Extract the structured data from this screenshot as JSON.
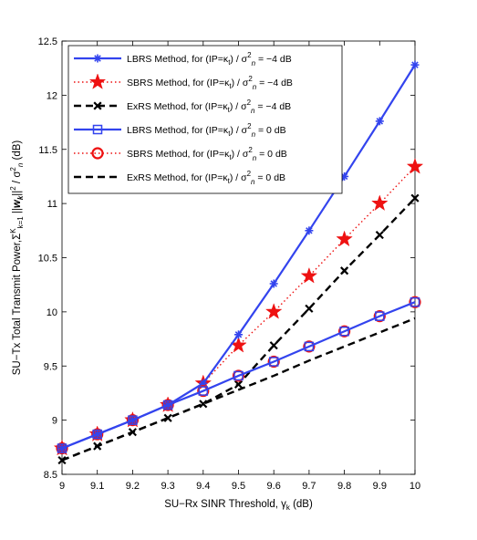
{
  "chart_data": {
    "type": "line",
    "x": [
      9,
      9.1,
      9.2,
      9.3,
      9.4,
      9.5,
      9.6,
      9.7,
      9.8,
      9.9,
      10
    ],
    "xlim": [
      9,
      10
    ],
    "ylim": [
      8.5,
      12.5
    ],
    "xticks": [
      "9",
      "9.1",
      "9.2",
      "9.3",
      "9.4",
      "9.5",
      "9.6",
      "9.7",
      "9.8",
      "9.9",
      "10"
    ],
    "yticks": [
      "8.5",
      "9",
      "9.5",
      "10",
      "10.5",
      "11",
      "11.5",
      "12",
      "12.5"
    ],
    "xlabel": {
      "main": "SU−Rx SINR Threshold, γ",
      "sub": "k",
      "unit": " (dB)"
    },
    "ylabel": {
      "parts": [
        {
          "t": "SU−Tx Total Transmit Power,Σ",
          "s": "n"
        },
        {
          "t": "K",
          "s": "sup"
        },
        {
          "t": "k=1",
          "s": "sub"
        },
        {
          "t": " ||",
          "s": "n"
        },
        {
          "t": "w",
          "s": "bi"
        },
        {
          "t": "k",
          "s": "subbi"
        },
        {
          "t": "||",
          "s": "n"
        },
        {
          "t": "2",
          "s": "sup"
        },
        {
          "t": " / σ",
          "s": "n"
        },
        {
          "t": "2",
          "s": "sup"
        },
        {
          "t": "n",
          "s": "subi"
        },
        {
          "t": " (dB)",
          "s": "n"
        }
      ]
    },
    "grid": false,
    "legend_position": "top-left",
    "series": [
      {
        "name": "LBRS Method, for (IP=κₜ) / σ²ₙ = −4 dB",
        "color": "#3344ee",
        "dash": "solid",
        "marker": "asterisk",
        "values": [
          8.74,
          8.87,
          9.0,
          9.14,
          9.34,
          9.79,
          10.26,
          10.75,
          11.25,
          11.76,
          12.28
        ]
      },
      {
        "name": "SBRS Method, for (IP=κₜ) / σ²ₙ = −4 dB",
        "color": "#ee1111",
        "dash": "dotted",
        "marker": "star",
        "values": [
          8.74,
          8.87,
          9.0,
          9.14,
          9.34,
          9.69,
          10.0,
          10.33,
          10.67,
          11.0,
          11.34
        ]
      },
      {
        "name": "ExRS Method, for (IP=κₜ) / σ²ₙ = −4 dB",
        "color": "#000000",
        "dash": "dashed",
        "marker": "x",
        "values": [
          8.63,
          8.76,
          8.89,
          9.02,
          9.15,
          9.33,
          9.69,
          10.03,
          10.38,
          10.71,
          11.05
        ]
      },
      {
        "name": "LBRS Method, for (IP=κₜ) / σ²ₙ = 0 dB",
        "color": "#3344ee",
        "dash": "solid",
        "marker": "square",
        "values": [
          8.74,
          8.87,
          9.0,
          9.14,
          9.27,
          9.41,
          9.54,
          9.68,
          9.82,
          9.96,
          10.09
        ]
      },
      {
        "name": "SBRS Method, for (IP=κₜ) / σ²ₙ = 0 dB",
        "color": "#ee1111",
        "dash": "dotted",
        "marker": "circle",
        "values": [
          8.74,
          8.87,
          9.0,
          9.14,
          9.27,
          9.41,
          9.54,
          9.68,
          9.82,
          9.96,
          10.09
        ]
      },
      {
        "name": "ExRS Method, for (IP=κₜ) / σ²ₙ = 0 dB",
        "color": "#000000",
        "dash": "dashed",
        "marker": "none",
        "values": [
          8.63,
          8.76,
          8.89,
          9.02,
          9.15,
          9.28,
          9.41,
          9.55,
          9.68,
          9.81,
          9.94
        ]
      }
    ],
    "legend": [
      {
        "label": "LBRS Method, for (IP=κ",
        "kappa_sub": "t",
        "mid": ") / σ",
        "sig_sup": "2",
        "sig_sub": "n",
        "tail": " = −4 dB"
      },
      {
        "label": "SBRS Method, for (IP=κ",
        "kappa_sub": "t",
        "mid": ") / σ",
        "sig_sup": "2",
        "sig_sub": "n",
        "tail": " = −4 dB"
      },
      {
        "label": "ExRS Method, for (IP=κ",
        "kappa_sub": "t",
        "mid": ") / σ",
        "sig_sup": "2",
        "sig_sub": "n",
        "tail": " = −4 dB"
      },
      {
        "label": "LBRS Method, for (IP=κ",
        "kappa_sub": "t",
        "mid": ") / σ",
        "sig_sup": "2",
        "sig_sub": "n",
        "tail": " = 0 dB"
      },
      {
        "label": "SBRS Method, for (IP=κ",
        "kappa_sub": "t",
        "mid": ") / σ",
        "sig_sup": "2",
        "sig_sub": "n",
        "tail": " = 0 dB"
      },
      {
        "label": "ExRS Method, for (IP=κ",
        "kappa_sub": "t",
        "mid": ") / σ",
        "sig_sup": "2",
        "sig_sub": "n",
        "tail": " = 0 dB"
      }
    ]
  }
}
